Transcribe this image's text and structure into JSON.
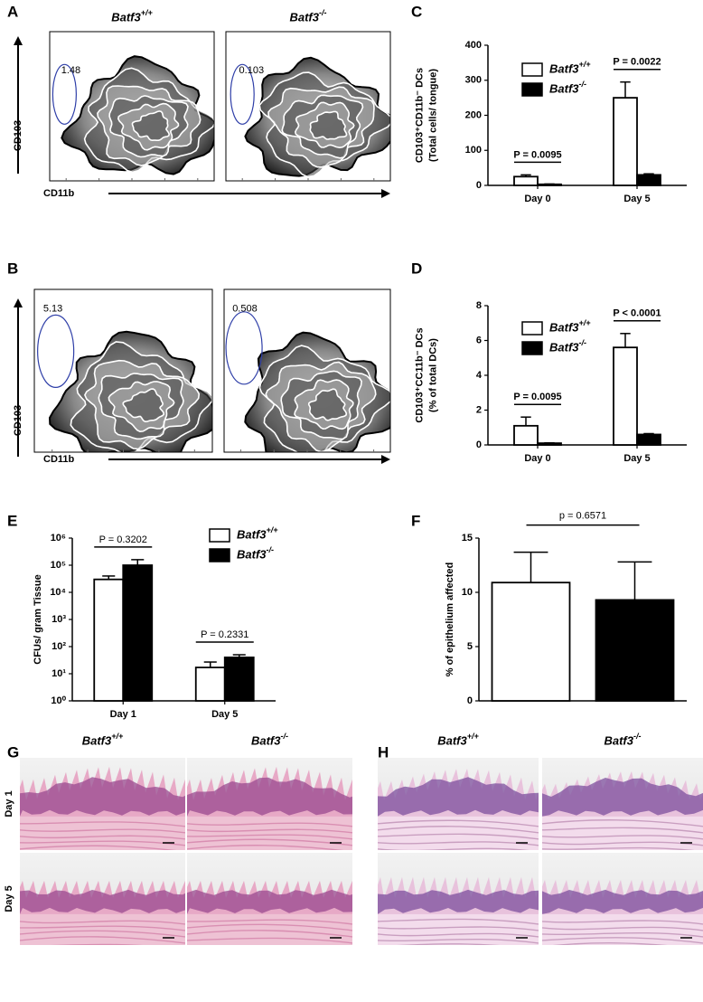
{
  "flow": [
    {
      "panel_label": "A",
      "y_axis": "CD103",
      "x_axis": "CD11b",
      "plots": [
        {
          "genotype": "Batf3+/+",
          "gate": "1.48"
        },
        {
          "genotype": "Batf3-/-",
          "gate": "0.103"
        }
      ]
    },
    {
      "panel_label": "B",
      "y_axis": "CD103",
      "x_axis": "CD11b",
      "plots": [
        {
          "gate": "5.13"
        },
        {
          "gate": "0.508"
        }
      ]
    }
  ],
  "chart_data": [
    {
      "type": "bar",
      "panel_label": "C",
      "ylabel": [
        "CD103⁺CD11b⁻ DCs",
        "(Total cells/ tongue)"
      ],
      "categories": [
        "Day 0",
        "Day 5"
      ],
      "series": [
        {
          "name": "Batf3+/+",
          "color": "#ffffff",
          "values": [
            25,
            250
          ],
          "errors": [
            5,
            45
          ]
        },
        {
          "name": "Batf3-/-",
          "color": "#000000",
          "values": [
            3,
            30
          ],
          "errors": [
            1,
            3
          ]
        }
      ],
      "p_values": [
        "P = 0.0095",
        "P = 0.0022"
      ],
      "ylim": [
        0,
        400
      ],
      "yticks": [
        0,
        100,
        200,
        300,
        400
      ],
      "grid": false
    },
    {
      "type": "bar",
      "panel_label": "D",
      "ylabel": [
        "CD103⁺CC11b⁻ DCs",
        "(% of total DCs)"
      ],
      "categories": [
        "Day 0",
        "Day 5"
      ],
      "series": [
        {
          "name": "Batf3+/+",
          "color": "#ffffff",
          "values": [
            1.1,
            5.6
          ],
          "errors": [
            0.5,
            0.8
          ]
        },
        {
          "name": "Batf3-/-",
          "color": "#000000",
          "values": [
            0.1,
            0.6
          ],
          "errors": [
            0.02,
            0.05
          ]
        }
      ],
      "p_values": [
        "P = 0.0095",
        "P < 0.0001"
      ],
      "ylim": [
        0,
        8
      ],
      "yticks": [
        0,
        2,
        4,
        6,
        8
      ],
      "grid": false
    },
    {
      "type": "bar",
      "panel_label": "E",
      "ylabel": [
        "CFUs/ gram Tissue"
      ],
      "log_y": true,
      "categories": [
        "Day 1",
        "Day 5"
      ],
      "series": [
        {
          "name": "Batf3+/+",
          "color": "#ffffff",
          "values": [
            30000,
            17
          ],
          "errors": [
            10000,
            10
          ]
        },
        {
          "name": "Batf3-/-",
          "color": "#000000",
          "values": [
            100000,
            40
          ],
          "errors": [
            60000,
            10
          ]
        }
      ],
      "p_values": [
        "P = 0.3202",
        "P = 0.2331"
      ],
      "ylim": [
        1,
        1000000
      ],
      "yticks": [
        {
          "value": 1,
          "label": "10⁰"
        },
        {
          "value": 10,
          "label": "10¹"
        },
        {
          "value": 100,
          "label": "10²"
        },
        {
          "value": 1000,
          "label": "10³"
        },
        {
          "value": 10000,
          "label": "10⁴"
        },
        {
          "value": 100000,
          "label": "10⁵"
        },
        {
          "value": 1000000,
          "label": "10⁶"
        }
      ],
      "grid": false
    },
    {
      "type": "bar",
      "panel_label": "F",
      "ylabel": [
        "% of epithelium affected"
      ],
      "categories": [
        null,
        null
      ],
      "values": [
        10.9,
        9.3
      ],
      "errors": [
        2.8,
        3.5
      ],
      "colors": [
        "#ffffff",
        "#000000"
      ],
      "p_value": "p = 0.6571",
      "ylim": [
        0,
        15
      ],
      "yticks": [
        0,
        5,
        10,
        15
      ],
      "grid": false
    }
  ],
  "histology": [
    {
      "panel_label": "G",
      "columns": [
        "Batf3+/+",
        "Batf3-/-"
      ],
      "rows": [
        "Day 1",
        "Day 5"
      ]
    },
    {
      "panel_label": "H",
      "columns": [
        "Batf3+/+",
        "Batf3-/-"
      ]
    }
  ]
}
